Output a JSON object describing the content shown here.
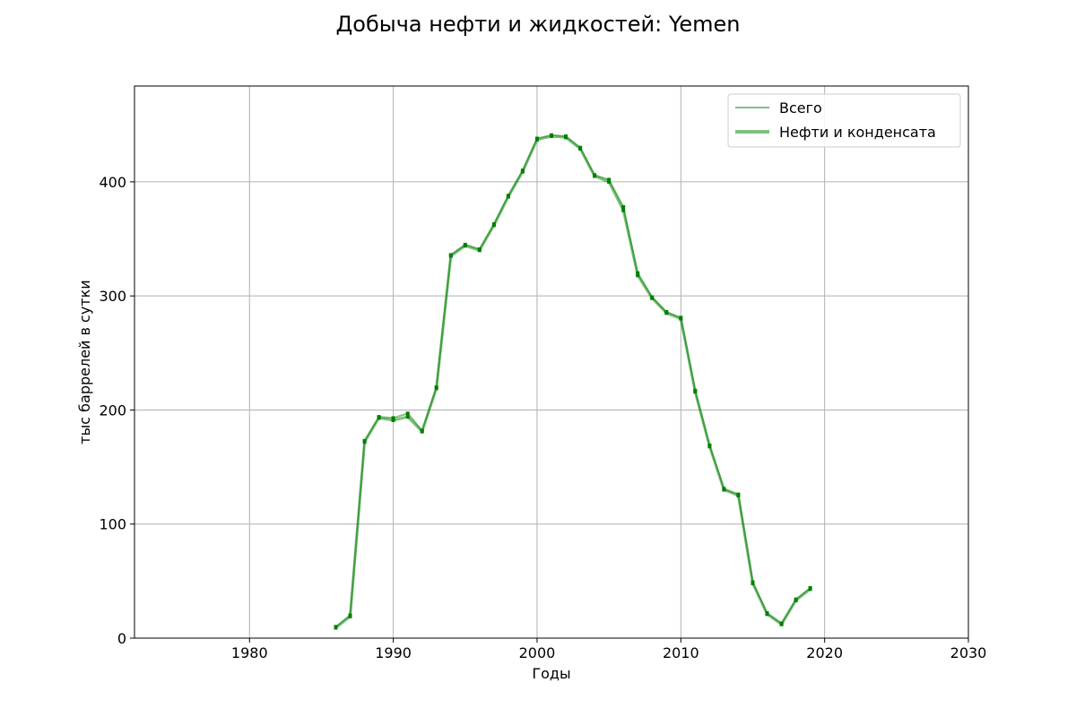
{
  "chart_data": {
    "type": "line",
    "title": "Добыча нефти и жидкостей: Yemen",
    "xlabel": "Годы",
    "ylabel": "тыс баррелей в сутки",
    "xlim": [
      1972,
      2030
    ],
    "ylim": [
      0,
      484
    ],
    "x_ticks": [
      1980,
      1990,
      2000,
      2010,
      2020,
      2030
    ],
    "y_ticks": [
      0,
      100,
      200,
      300,
      400
    ],
    "grid": true,
    "legend_position": "top-right",
    "color": "#008000",
    "x": [
      1986,
      1987,
      1988,
      1989,
      1990,
      1991,
      1992,
      1993,
      1994,
      1995,
      1996,
      1997,
      1998,
      1999,
      2000,
      2001,
      2002,
      2003,
      2004,
      2005,
      2006,
      2007,
      2008,
      2009,
      2010,
      2011,
      2012,
      2013,
      2014,
      2015,
      2016,
      2017,
      2018,
      2019
    ],
    "series": [
      {
        "name": "Всего",
        "values": [
          10,
          20,
          173,
          194,
          193,
          197,
          182,
          220,
          336,
          345,
          341,
          363,
          388,
          410,
          438,
          441,
          440,
          430,
          406,
          402,
          378,
          320,
          299,
          286,
          281,
          217,
          169,
          131,
          126,
          49,
          22,
          13,
          34,
          44
        ]
      },
      {
        "name": "Нефти и конденсата",
        "values": [
          9,
          19,
          172,
          193,
          191,
          194,
          181,
          219,
          335,
          344,
          340,
          362,
          387,
          409,
          437,
          440,
          439,
          429,
          405,
          400,
          375,
          318,
          298,
          285,
          280,
          216,
          168,
          130,
          125,
          48,
          21,
          12,
          33,
          43
        ]
      }
    ]
  }
}
